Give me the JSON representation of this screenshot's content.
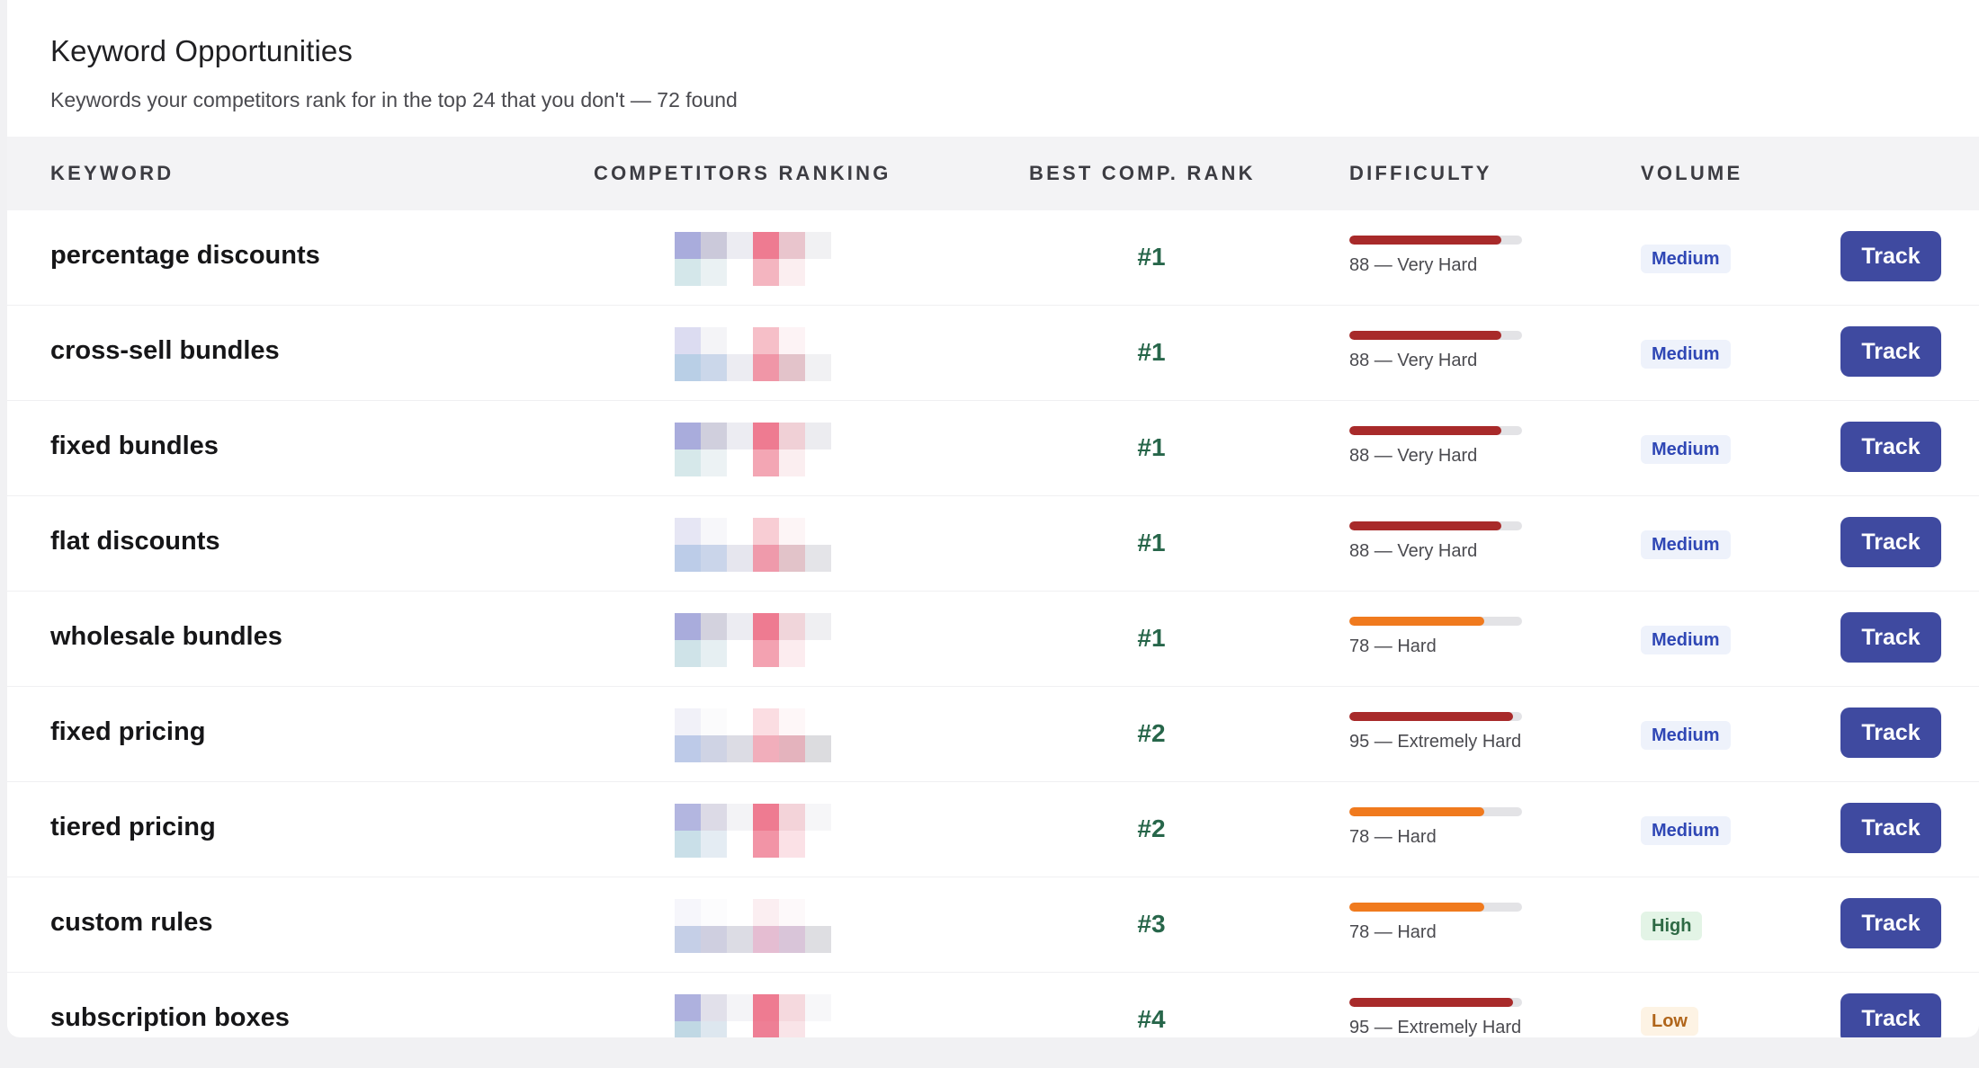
{
  "header": {
    "title": "Keyword Opportunities",
    "subtitle": "Keywords your competitors rank for in the top 24 that you don't — 72 found"
  },
  "columns": {
    "keyword": "KEYWORD",
    "competitors": "COMPETITORS RANKING",
    "best_rank": "BEST COMP. RANK",
    "difficulty": "DIFFICULTY",
    "volume": "VOLUME"
  },
  "colors": {
    "accent_button": "#3f4aa0",
    "rank_text": "#27664a",
    "difficulty_very_hard": "#a82a2a",
    "difficulty_hard": "#f07a1e",
    "volume_medium_bg": "#eef2fb",
    "volume_medium_text": "#2f47b5",
    "volume_high_bg": "#e3f4e6",
    "volume_high_text": "#2e6a45",
    "volume_low_bg": "#fdf3e4",
    "volume_low_text": "#b0651a"
  },
  "track_label": "Track",
  "rows": [
    {
      "keyword": "percentage discounts",
      "best_rank": "#1",
      "difficulty": 88,
      "difficulty_label": "88 — Very Hard",
      "difficulty_color": "#a82a2a",
      "volume": "Medium",
      "volume_level": "medium",
      "heatmap": [
        [
          "#a9acdc",
          "#cbc9da",
          "#ececf2",
          "#ee7b91",
          "#e9c5cd",
          "#f1f1f3"
        ],
        [
          "#d4e7ea",
          "#eaf1f3",
          "#ffffff",
          "#f4b5c0",
          "#fbeef0",
          "#ffffff"
        ]
      ]
    },
    {
      "keyword": "cross-sell bundles",
      "best_rank": "#1",
      "difficulty": 88,
      "difficulty_label": "88 — Very Hard",
      "difficulty_color": "#a82a2a",
      "volume": "Medium",
      "volume_level": "medium",
      "heatmap": [
        [
          "#dcdcf1",
          "#f4f4f7",
          "#ffffff",
          "#f6bfc8",
          "#fdf3f5",
          "#ffffff"
        ],
        [
          "#b9cfe6",
          "#cbd7ea",
          "#ececf2",
          "#f096a7",
          "#e3c3ca",
          "#f1f1f3"
        ]
      ]
    },
    {
      "keyword": "fixed bundles",
      "best_rank": "#1",
      "difficulty": 88,
      "difficulty_label": "88 — Very Hard",
      "difficulty_color": "#a82a2a",
      "volume": "Medium",
      "volume_level": "medium",
      "heatmap": [
        [
          "#a9acdc",
          "#d0cfdd",
          "#ececf2",
          "#ee7b91",
          "#f0d0d6",
          "#ececf0"
        ],
        [
          "#d6e8ea",
          "#ecf2f4",
          "#ffffff",
          "#f3a6b4",
          "#fbeef0",
          "#ffffff"
        ]
      ]
    },
    {
      "keyword": "flat discounts",
      "best_rank": "#1",
      "difficulty": 88,
      "difficulty_label": "88 — Very Hard",
      "difficulty_color": "#a82a2a",
      "volume": "Medium",
      "volume_level": "medium",
      "heatmap": [
        [
          "#e6e6f4",
          "#f7f7fa",
          "#ffffff",
          "#f8cdd4",
          "#fdf5f6",
          "#ffffff"
        ],
        [
          "#bccce8",
          "#cad5ea",
          "#e6e6ee",
          "#ef9aab",
          "#e2c3c9",
          "#e4e4e8"
        ]
      ]
    },
    {
      "keyword": "wholesale bundles",
      "best_rank": "#1",
      "difficulty": 78,
      "difficulty_label": "78 — Hard",
      "difficulty_color": "#f07a1e",
      "volume": "Medium",
      "volume_level": "medium",
      "heatmap": [
        [
          "#a9acdc",
          "#d3d2de",
          "#ececf2",
          "#ee7b91",
          "#f0d5da",
          "#efeff2"
        ],
        [
          "#cfe3e8",
          "#e6eff2",
          "#ffffff",
          "#f3a2b1",
          "#fcecef",
          "#ffffff"
        ]
      ]
    },
    {
      "keyword": "fixed pricing",
      "best_rank": "#2",
      "difficulty": 95,
      "difficulty_label": "95 — Extremely Hard",
      "difficulty_color": "#a82a2a",
      "volume": "Medium",
      "volume_level": "medium",
      "heatmap": [
        [
          "#f1f1f8",
          "#fbfbfc",
          "#ffffff",
          "#fbdde2",
          "#fef7f8",
          "#ffffff"
        ],
        [
          "#bdcae8",
          "#cfd3e4",
          "#dcdce4",
          "#f1aebb",
          "#e4b3bd",
          "#dcdcdf"
        ]
      ]
    },
    {
      "keyword": "tiered pricing",
      "best_rank": "#2",
      "difficulty": 78,
      "difficulty_label": "78 — Hard",
      "difficulty_color": "#f07a1e",
      "volume": "Medium",
      "volume_level": "medium",
      "heatmap": [
        [
          "#b3b6e0",
          "#dcdae6",
          "#f3f3f6",
          "#ee7b91",
          "#f3d3d9",
          "#f6f6f8"
        ],
        [
          "#c9dfe8",
          "#e4ecf3",
          "#ffffff",
          "#f294a6",
          "#fbe1e6",
          "#ffffff"
        ]
      ]
    },
    {
      "keyword": "custom rules",
      "best_rank": "#3",
      "difficulty": 78,
      "difficulty_label": "78 — Hard",
      "difficulty_color": "#f07a1e",
      "volume": "High",
      "volume_level": "high",
      "heatmap": [
        [
          "#f6f6fb",
          "#fcfcfd",
          "#ffffff",
          "#fbeef1",
          "#fdf9fa",
          "#ffffff"
        ],
        [
          "#c5cfe7",
          "#cfcfe0",
          "#dcdce4",
          "#e5bdd2",
          "#d9c5d9",
          "#dedee2"
        ]
      ]
    },
    {
      "keyword": "subscription boxes",
      "best_rank": "#4",
      "difficulty": 95,
      "difficulty_label": "95 — Extremely Hard",
      "difficulty_color": "#a82a2a",
      "volume": "Low",
      "volume_level": "low",
      "heatmap": [
        [
          "#aeb1de",
          "#e1e0ea",
          "#f4f4f7",
          "#ee7b91",
          "#f5d9de",
          "#f7f7f9"
        ],
        [
          "#c0d8e4",
          "#dde7ef",
          "#ffffff",
          "#ee7f95",
          "#f9e4e8",
          "#ffffff"
        ]
      ]
    }
  ]
}
